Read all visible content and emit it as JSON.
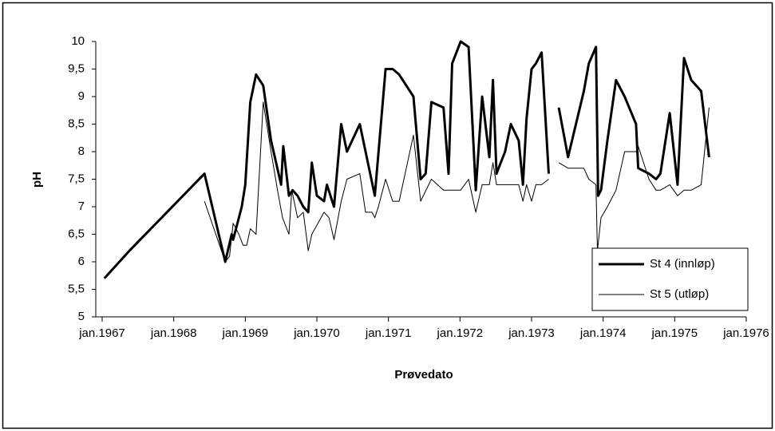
{
  "chart_data": {
    "type": "line",
    "x_label": "Prøvedato",
    "y_label": "pH",
    "xlim": [
      1967,
      1976
    ],
    "xticks": [
      {
        "value": 1967,
        "label": "jan.1967"
      },
      {
        "value": 1968,
        "label": "jan.1968"
      },
      {
        "value": 1969,
        "label": "jan.1969"
      },
      {
        "value": 1970,
        "label": "jan.1970"
      },
      {
        "value": 1971,
        "label": "jan.1971"
      },
      {
        "value": 1972,
        "label": "jan.1972"
      },
      {
        "value": 1973,
        "label": "jan.1973"
      },
      {
        "value": 1974,
        "label": "jan.1974"
      },
      {
        "value": 1975,
        "label": "jan.1975"
      },
      {
        "value": 1976,
        "label": "jan.1976"
      }
    ],
    "ylim": [
      5,
      10
    ],
    "yticks": [
      5,
      {
        "value": 5.5,
        "label": "5,5"
      },
      6,
      {
        "value": 6.5,
        "label": "6,5"
      },
      7,
      {
        "value": 7.5,
        "label": "7,5"
      },
      8,
      {
        "value": 8.5,
        "label": "8,5"
      },
      9,
      {
        "value": 9.5,
        "label": "9,5"
      },
      10
    ],
    "legend": "right",
    "series": [
      {
        "name": "St 4 (innløp)",
        "color": "#000000",
        "width": 3,
        "x": [
          1967.03,
          1967.38,
          1968.43,
          1968.72,
          1968.81,
          1968.83,
          1968.95,
          1969.0,
          1969.07,
          1969.15,
          1969.25,
          1969.36,
          1969.5,
          1969.53,
          1969.61,
          1969.66,
          1969.73,
          1969.81,
          1969.88,
          1969.93,
          1970.0,
          1970.1,
          1970.14,
          1970.24,
          1970.34,
          1970.42,
          1970.6,
          1970.81,
          1970.96,
          1971.06,
          1971.15,
          1971.35,
          1971.45,
          1971.52,
          1971.6,
          1971.77,
          1971.84,
          1971.89,
          1972.01,
          1972.12,
          1972.22,
          1972.31,
          1972.41,
          1972.46,
          1972.51,
          1972.57,
          1972.63,
          1972.71,
          1972.82,
          1972.88,
          1972.93,
          1973.0,
          1973.06,
          1973.14,
          1973.24,
          1973.31,
          1973.38,
          1973.51,
          1973.73,
          1973.8,
          1973.9,
          1973.93,
          1973.97,
          1974.06,
          1974.18,
          1974.3,
          1974.46,
          1974.49,
          1974.64,
          1974.74,
          1974.8,
          1974.93,
          1975.04,
          1975.13,
          1975.23,
          1975.37,
          1975.48
        ],
        "values": [
          5.7,
          6.2,
          7.6,
          6.0,
          6.5,
          6.4,
          7.0,
          7.4,
          8.9,
          9.4,
          9.2,
          8.2,
          7.4,
          8.1,
          7.2,
          7.3,
          7.2,
          7.0,
          6.9,
          7.8,
          7.2,
          7.1,
          7.4,
          7.0,
          8.5,
          8.0,
          8.5,
          7.2,
          9.5,
          9.5,
          9.4,
          9.0,
          7.5,
          7.6,
          8.9,
          8.8,
          7.6,
          9.6,
          10.0,
          9.9,
          7.3,
          9.0,
          7.9,
          9.3,
          7.6,
          7.8,
          8.0,
          8.5,
          8.2,
          7.4,
          8.6,
          9.5,
          9.6,
          9.8,
          7.6,
          null,
          8.8,
          7.9,
          9.1,
          9.6,
          9.9,
          7.2,
          7.3,
          8.2,
          9.3,
          9.0,
          8.5,
          7.7,
          7.6,
          7.5,
          7.6,
          8.7,
          7.4,
          9.7,
          9.3,
          9.1,
          7.9
        ]
      },
      {
        "name": "St 5 (utløp)",
        "color": "#000000",
        "width": 1,
        "x": [
          1968.43,
          1968.72,
          1968.78,
          1968.83,
          1968.91,
          1968.97,
          1969.02,
          1969.07,
          1969.15,
          1969.25,
          1969.36,
          1969.45,
          1969.52,
          1969.61,
          1969.65,
          1969.73,
          1969.81,
          1969.88,
          1969.93,
          1970.1,
          1970.17,
          1970.24,
          1970.34,
          1970.42,
          1970.6,
          1970.68,
          1970.77,
          1970.81,
          1970.86,
          1970.96,
          1971.06,
          1971.15,
          1971.35,
          1971.45,
          1971.6,
          1971.77,
          1972.01,
          1972.12,
          1972.22,
          1972.31,
          1972.41,
          1972.46,
          1972.51,
          1972.82,
          1972.88,
          1972.93,
          1973.0,
          1973.06,
          1973.14,
          1973.24,
          1973.31,
          1973.38,
          1973.51,
          1973.73,
          1973.8,
          1973.9,
          1973.92,
          1973.97,
          1974.06,
          1974.18,
          1974.3,
          1974.46,
          1974.49,
          1974.64,
          1974.74,
          1974.8,
          1974.93,
          1975.04,
          1975.13,
          1975.23,
          1975.37,
          1975.48
        ],
        "values": [
          7.1,
          6.0,
          6.1,
          6.7,
          6.5,
          6.3,
          6.3,
          6.6,
          6.5,
          8.9,
          8.0,
          7.3,
          6.8,
          6.5,
          7.3,
          6.8,
          6.9,
          6.2,
          6.5,
          6.9,
          6.8,
          6.4,
          7.1,
          7.5,
          7.6,
          6.9,
          6.9,
          6.8,
          7.0,
          7.5,
          7.1,
          7.1,
          8.3,
          7.1,
          7.5,
          7.3,
          7.3,
          7.5,
          6.9,
          7.4,
          7.4,
          7.8,
          7.4,
          7.4,
          7.1,
          7.4,
          7.1,
          7.4,
          7.4,
          7.5,
          null,
          7.8,
          7.7,
          7.7,
          7.5,
          7.4,
          6.2,
          6.8,
          7.0,
          7.3,
          8.0,
          8.0,
          8.1,
          7.5,
          7.3,
          7.3,
          7.4,
          7.2,
          7.3,
          7.3,
          7.4,
          8.8
        ]
      }
    ]
  }
}
